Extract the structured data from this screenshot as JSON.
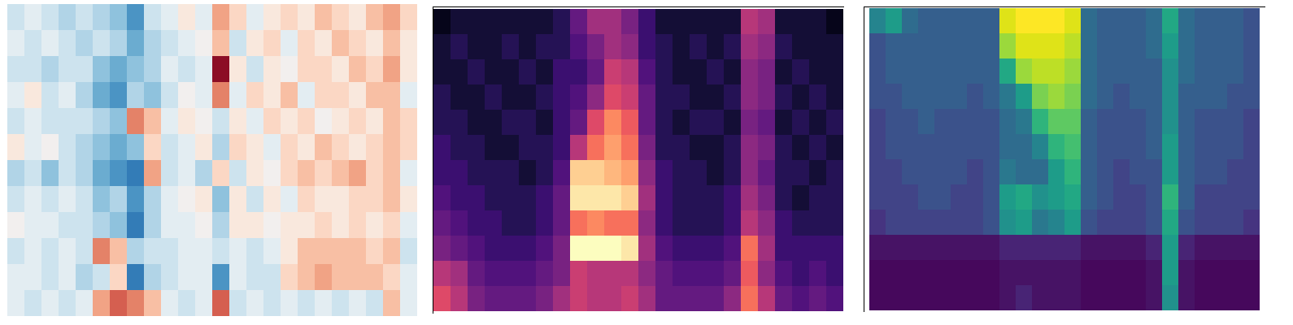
{
  "chart_data": [
    {
      "type": "heatmap",
      "color": "coolwarm",
      "zlim": [
        -1,
        1
      ],
      "tick_labels": false,
      "cells": [
        [
          -0.2,
          -0.1,
          -0.2,
          -0.3,
          -0.2,
          -0.3,
          -0.4,
          -0.6,
          -0.2,
          -0.1,
          0.1,
          -0.1,
          0.4,
          0.2,
          -0.1,
          0.1,
          0.2,
          0.1,
          0.3,
          0.2,
          0.1,
          0.3,
          0.4,
          0.2
        ],
        [
          -0.1,
          -0.2,
          -0.1,
          -0.2,
          -0.3,
          -0.2,
          -0.3,
          -0.5,
          -0.3,
          -0.2,
          -0.1,
          0.0,
          0.3,
          -0.2,
          0.1,
          0.2,
          -0.1,
          0.2,
          0.1,
          0.3,
          0.2,
          0.1,
          0.3,
          0.1
        ],
        [
          -0.2,
          -0.2,
          -0.3,
          -0.2,
          -0.2,
          -0.4,
          -0.5,
          -0.4,
          -0.3,
          -0.1,
          -0.2,
          -0.1,
          0.9,
          0.1,
          -0.2,
          0.1,
          0.0,
          0.2,
          0.2,
          0.1,
          0.3,
          0.2,
          0.4,
          0.1
        ],
        [
          -0.1,
          0.1,
          -0.2,
          -0.1,
          -0.3,
          -0.5,
          -0.6,
          -0.3,
          -0.4,
          -0.2,
          0.0,
          -0.1,
          0.5,
          -0.1,
          0.2,
          0.1,
          0.3,
          -0.1,
          0.2,
          0.2,
          0.1,
          0.3,
          0.3,
          -0.1
        ],
        [
          -0.2,
          -0.1,
          -0.2,
          -0.2,
          -0.2,
          -0.3,
          -0.4,
          0.5,
          0.3,
          -0.1,
          0.1,
          0.0,
          -0.2,
          0.1,
          -0.1,
          0.2,
          0.1,
          0.2,
          0.0,
          0.1,
          0.2,
          0.1,
          0.3,
          0.2
        ],
        [
          0.1,
          -0.1,
          0.0,
          -0.2,
          -0.3,
          -0.4,
          -0.5,
          -0.4,
          0.2,
          -0.2,
          -0.1,
          0.1,
          -0.3,
          0.2,
          0.1,
          -0.1,
          0.2,
          0.1,
          0.3,
          0.2,
          0.1,
          0.2,
          0.3,
          0.2
        ],
        [
          -0.3,
          -0.2,
          -0.4,
          -0.2,
          -0.3,
          -0.5,
          -0.6,
          -0.7,
          0.4,
          -0.2,
          -0.1,
          -0.3,
          0.2,
          -0.2,
          0.1,
          0.0,
          0.2,
          0.3,
          0.2,
          0.3,
          0.4,
          0.2,
          0.3,
          -0.1
        ],
        [
          -0.2,
          -0.1,
          -0.2,
          -0.1,
          -0.2,
          -0.4,
          -0.3,
          -0.6,
          -0.3,
          -0.1,
          0.0,
          0.1,
          -0.4,
          0.1,
          -0.2,
          0.1,
          -0.1,
          0.2,
          0.1,
          0.1,
          0.2,
          0.2,
          0.3,
          0.1
        ],
        [
          0.0,
          -0.1,
          -0.1,
          -0.2,
          -0.2,
          -0.3,
          -0.4,
          -0.7,
          -0.3,
          -0.1,
          -0.1,
          0.0,
          -0.3,
          0.1,
          0.1,
          0.0,
          0.1,
          0.1,
          0.2,
          0.1,
          0.2,
          0.1,
          0.2,
          -0.1
        ],
        [
          -0.2,
          -0.1,
          -0.2,
          -0.1,
          -0.2,
          0.5,
          0.3,
          -0.3,
          -0.2,
          -0.2,
          -0.1,
          -0.1,
          -0.2,
          -0.1,
          -0.2,
          -0.1,
          0.1,
          0.3,
          0.3,
          0.3,
          0.3,
          0.2,
          0.3,
          -0.2
        ],
        [
          -0.1,
          -0.1,
          -0.2,
          -0.1,
          -0.3,
          -0.2,
          0.2,
          -0.7,
          -0.3,
          -0.2,
          -0.1,
          -0.1,
          -0.6,
          -0.1,
          -0.2,
          -0.2,
          0.2,
          0.3,
          0.4,
          0.3,
          0.3,
          0.3,
          0.2,
          -0.1
        ],
        [
          -0.1,
          -0.2,
          -0.1,
          -0.2,
          -0.1,
          0.4,
          0.6,
          0.5,
          0.3,
          -0.1,
          -0.2,
          -0.1,
          0.6,
          -0.2,
          -0.1,
          -0.2,
          -0.1,
          -0.2,
          -0.1,
          -0.2,
          -0.1,
          -0.2,
          0.3,
          -0.1
        ]
      ]
    },
    {
      "type": "heatmap",
      "color": "magma",
      "zlim": [
        0,
        1
      ],
      "tick_labels": false,
      "cells": [
        [
          0.05,
          0.1,
          0.1,
          0.1,
          0.1,
          0.1,
          0.1,
          0.15,
          0.3,
          0.45,
          0.45,
          0.35,
          0.2,
          0.1,
          0.1,
          0.1,
          0.1,
          0.1,
          0.5,
          0.45,
          0.1,
          0.1,
          0.1,
          0.05
        ],
        [
          0.1,
          0.15,
          0.1,
          0.1,
          0.15,
          0.1,
          0.15,
          0.15,
          0.25,
          0.35,
          0.45,
          0.4,
          0.2,
          0.15,
          0.1,
          0.15,
          0.1,
          0.15,
          0.45,
          0.4,
          0.15,
          0.1,
          0.1,
          0.1
        ],
        [
          0.1,
          0.1,
          0.15,
          0.1,
          0.1,
          0.15,
          0.1,
          0.2,
          0.2,
          0.3,
          0.55,
          0.5,
          0.25,
          0.15,
          0.1,
          0.1,
          0.15,
          0.1,
          0.4,
          0.35,
          0.1,
          0.15,
          0.1,
          0.1
        ],
        [
          0.15,
          0.1,
          0.1,
          0.15,
          0.1,
          0.1,
          0.15,
          0.2,
          0.25,
          0.4,
          0.6,
          0.55,
          0.3,
          0.15,
          0.15,
          0.1,
          0.1,
          0.15,
          0.4,
          0.35,
          0.15,
          0.1,
          0.15,
          0.1
        ],
        [
          0.15,
          0.15,
          0.1,
          0.1,
          0.15,
          0.15,
          0.1,
          0.2,
          0.3,
          0.6,
          0.75,
          0.65,
          0.3,
          0.15,
          0.1,
          0.15,
          0.15,
          0.1,
          0.35,
          0.3,
          0.1,
          0.15,
          0.1,
          0.15
        ],
        [
          0.2,
          0.15,
          0.15,
          0.1,
          0.1,
          0.15,
          0.15,
          0.2,
          0.5,
          0.7,
          0.8,
          0.7,
          0.35,
          0.15,
          0.15,
          0.1,
          0.1,
          0.15,
          0.4,
          0.35,
          0.15,
          0.1,
          0.15,
          0.1
        ],
        [
          0.2,
          0.2,
          0.15,
          0.15,
          0.15,
          0.1,
          0.15,
          0.25,
          0.9,
          0.9,
          0.85,
          0.8,
          0.4,
          0.2,
          0.15,
          0.15,
          0.1,
          0.15,
          0.4,
          0.3,
          0.15,
          0.15,
          0.1,
          0.15
        ],
        [
          0.25,
          0.2,
          0.2,
          0.15,
          0.15,
          0.15,
          0.2,
          0.3,
          0.95,
          0.95,
          0.95,
          0.9,
          0.45,
          0.2,
          0.15,
          0.15,
          0.15,
          0.2,
          0.45,
          0.35,
          0.15,
          0.1,
          0.15,
          0.15
        ],
        [
          0.3,
          0.25,
          0.2,
          0.2,
          0.15,
          0.15,
          0.2,
          0.3,
          0.7,
          0.75,
          0.7,
          0.7,
          0.4,
          0.2,
          0.15,
          0.15,
          0.15,
          0.2,
          0.5,
          0.4,
          0.2,
          0.15,
          0.15,
          0.15
        ],
        [
          0.35,
          0.3,
          0.25,
          0.2,
          0.2,
          0.2,
          0.25,
          0.35,
          1.0,
          1.0,
          1.0,
          0.95,
          0.45,
          0.25,
          0.2,
          0.2,
          0.2,
          0.25,
          0.7,
          0.45,
          0.2,
          0.2,
          0.2,
          0.2
        ],
        [
          0.5,
          0.45,
          0.3,
          0.25,
          0.25,
          0.25,
          0.3,
          0.35,
          0.55,
          0.5,
          0.5,
          0.5,
          0.4,
          0.3,
          0.25,
          0.25,
          0.25,
          0.3,
          0.65,
          0.4,
          0.25,
          0.2,
          0.25,
          0.2
        ],
        [
          0.6,
          0.5,
          0.35,
          0.3,
          0.3,
          0.3,
          0.35,
          0.45,
          0.55,
          0.5,
          0.5,
          0.55,
          0.45,
          0.3,
          0.3,
          0.3,
          0.3,
          0.4,
          0.7,
          0.5,
          0.3,
          0.25,
          0.3,
          0.25
        ]
      ]
    },
    {
      "type": "heatmap",
      "color": "viridis",
      "zlim": [
        0,
        1
      ],
      "tick_labels": false,
      "cells": [
        [
          0.45,
          0.55,
          0.35,
          0.3,
          0.3,
          0.3,
          0.3,
          0.3,
          0.95,
          1.0,
          1.0,
          1.0,
          0.95,
          0.35,
          0.3,
          0.3,
          0.3,
          0.35,
          0.6,
          0.35,
          0.3,
          0.3,
          0.3,
          0.25
        ],
        [
          0.25,
          0.3,
          0.3,
          0.3,
          0.3,
          0.3,
          0.3,
          0.3,
          0.85,
          0.95,
          0.95,
          0.95,
          0.9,
          0.35,
          0.3,
          0.3,
          0.3,
          0.35,
          0.55,
          0.35,
          0.3,
          0.3,
          0.3,
          0.25
        ],
        [
          0.25,
          0.3,
          0.3,
          0.3,
          0.3,
          0.3,
          0.3,
          0.3,
          0.6,
          0.85,
          0.9,
          0.9,
          0.85,
          0.35,
          0.3,
          0.3,
          0.3,
          0.3,
          0.5,
          0.35,
          0.3,
          0.3,
          0.3,
          0.25
        ],
        [
          0.25,
          0.25,
          0.3,
          0.3,
          0.3,
          0.3,
          0.25,
          0.3,
          0.4,
          0.55,
          0.8,
          0.85,
          0.8,
          0.35,
          0.3,
          0.25,
          0.3,
          0.3,
          0.5,
          0.3,
          0.3,
          0.3,
          0.25,
          0.25
        ],
        [
          0.2,
          0.25,
          0.25,
          0.3,
          0.25,
          0.25,
          0.25,
          0.25,
          0.35,
          0.4,
          0.65,
          0.75,
          0.75,
          0.3,
          0.25,
          0.25,
          0.25,
          0.3,
          0.5,
          0.3,
          0.25,
          0.25,
          0.25,
          0.2
        ],
        [
          0.2,
          0.25,
          0.25,
          0.25,
          0.25,
          0.25,
          0.25,
          0.25,
          0.35,
          0.35,
          0.45,
          0.65,
          0.7,
          0.3,
          0.25,
          0.25,
          0.25,
          0.3,
          0.55,
          0.3,
          0.25,
          0.25,
          0.25,
          0.2
        ],
        [
          0.2,
          0.2,
          0.25,
          0.25,
          0.25,
          0.25,
          0.2,
          0.25,
          0.4,
          0.35,
          0.35,
          0.55,
          0.65,
          0.3,
          0.25,
          0.2,
          0.25,
          0.25,
          0.55,
          0.3,
          0.25,
          0.25,
          0.2,
          0.2
        ],
        [
          0.2,
          0.2,
          0.2,
          0.25,
          0.25,
          0.2,
          0.2,
          0.25,
          0.55,
          0.6,
          0.5,
          0.55,
          0.6,
          0.3,
          0.25,
          0.2,
          0.2,
          0.25,
          0.65,
          0.3,
          0.2,
          0.2,
          0.2,
          0.2
        ],
        [
          0.15,
          0.2,
          0.2,
          0.2,
          0.2,
          0.2,
          0.2,
          0.25,
          0.5,
          0.55,
          0.4,
          0.45,
          0.55,
          0.25,
          0.2,
          0.2,
          0.2,
          0.25,
          0.6,
          0.25,
          0.2,
          0.2,
          0.2,
          0.15
        ],
        [
          0.05,
          0.05,
          0.05,
          0.05,
          0.05,
          0.05,
          0.05,
          0.05,
          0.1,
          0.1,
          0.1,
          0.1,
          0.1,
          0.05,
          0.05,
          0.05,
          0.05,
          0.1,
          0.55,
          0.1,
          0.05,
          0.05,
          0.05,
          0.05
        ],
        [
          0.02,
          0.02,
          0.02,
          0.02,
          0.02,
          0.02,
          0.02,
          0.02,
          0.05,
          0.05,
          0.05,
          0.05,
          0.05,
          0.02,
          0.02,
          0.02,
          0.02,
          0.05,
          0.55,
          0.05,
          0.02,
          0.02,
          0.02,
          0.02
        ],
        [
          0.02,
          0.02,
          0.02,
          0.02,
          0.02,
          0.02,
          0.02,
          0.02,
          0.05,
          0.1,
          0.05,
          0.05,
          0.05,
          0.02,
          0.02,
          0.02,
          0.02,
          0.05,
          0.5,
          0.05,
          0.02,
          0.02,
          0.02,
          0.02
        ]
      ]
    }
  ]
}
